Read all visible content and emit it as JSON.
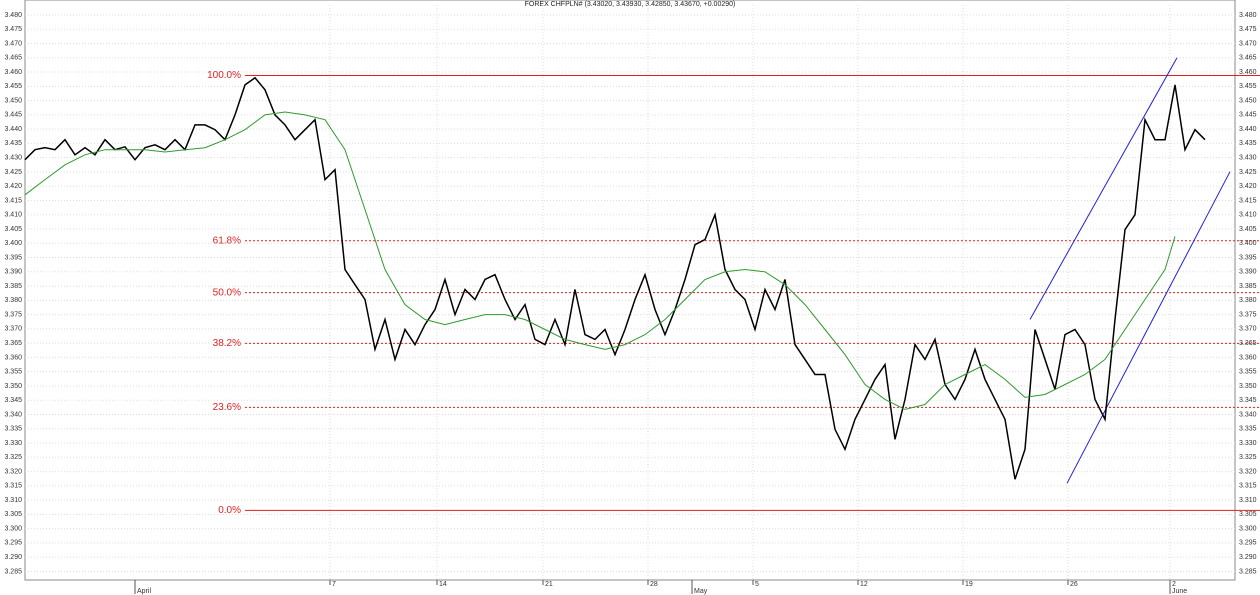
{
  "chart_data": {
    "type": "line",
    "title": "FOREX CHFPLN# (3.43020, 3.43930, 3.42850, 3.43670, +0.00290)",
    "xlim": [
      0,
      121
    ],
    "ylim": [
      3.282,
      3.4835
    ],
    "grid": true,
    "yticks": [
      3.285,
      {
        "value": 3.29,
        "label": "3.290"
      },
      3.295,
      {
        "value": 3.3,
        "label": "3.300"
      },
      3.305,
      {
        "value": 3.31,
        "label": "3.310"
      },
      3.315,
      {
        "value": 3.32,
        "label": "3.320"
      },
      3.325,
      {
        "value": 3.33,
        "label": "3.330"
      },
      3.335,
      {
        "value": 3.34,
        "label": "3.340"
      },
      3.345,
      {
        "value": 3.35,
        "label": "3.350"
      },
      3.355,
      {
        "value": 3.36,
        "label": "3.360"
      },
      3.365,
      {
        "value": 3.37,
        "label": "3.370"
      },
      3.375,
      {
        "value": 3.38,
        "label": "3.380"
      },
      3.385,
      {
        "value": 3.39,
        "label": "3.390"
      },
      3.395,
      {
        "value": 3.4,
        "label": "3.400"
      },
      3.405,
      {
        "value": 3.41,
        "label": "3.410"
      },
      3.415,
      {
        "value": 3.42,
        "label": "3.420"
      },
      3.425,
      {
        "value": 3.43,
        "label": "3.430"
      },
      3.435,
      {
        "value": 3.44,
        "label": "3.440"
      },
      3.445,
      {
        "value": 3.45,
        "label": "3.450"
      },
      3.455,
      {
        "value": 3.46,
        "label": "3.460"
      },
      3.465,
      {
        "value": 3.47,
        "label": "3.470"
      },
      3.475,
      {
        "value": 3.48,
        "label": "3.480"
      }
    ],
    "xticks": [
      {
        "value": 30.5,
        "label": "7"
      },
      {
        "value": 41.2,
        "label": "14"
      },
      {
        "value": 51.8,
        "label": "21"
      },
      {
        "value": 62.3,
        "label": "28"
      },
      {
        "value": 72.8,
        "label": "5"
      },
      {
        "value": 83.3,
        "label": "12"
      },
      {
        "value": 93.8,
        "label": "19"
      },
      {
        "value": 104.3,
        "label": "26"
      },
      {
        "value": 114.5,
        "label": "2"
      }
    ],
    "xmonths": [
      {
        "value": 11,
        "label": "April"
      },
      {
        "value": 66.7,
        "label": "May"
      },
      {
        "value": 114.5,
        "label": "June"
      }
    ],
    "series": [
      {
        "color": "#000000",
        "x": [
          0,
          1,
          2,
          3,
          4,
          5,
          6,
          7,
          8,
          9,
          10,
          11,
          12,
          13,
          14,
          15,
          16,
          17,
          18,
          19,
          20,
          21,
          22,
          23,
          24,
          25,
          26,
          27,
          28,
          29,
          30,
          31,
          32,
          33,
          34,
          35,
          36,
          37,
          38,
          39,
          40,
          41,
          42,
          43,
          44,
          45,
          46,
          47,
          48,
          49,
          50,
          51,
          52,
          53,
          54,
          55,
          56,
          57,
          58,
          59,
          60,
          61,
          62,
          63,
          64,
          65,
          66,
          67,
          68,
          69,
          70,
          71,
          72,
          73,
          74,
          75,
          76,
          77,
          78,
          79,
          80,
          81,
          82,
          83,
          84,
          85,
          86,
          87,
          88,
          89,
          90,
          91,
          92,
          93,
          94,
          95,
          96,
          97,
          98,
          99,
          100,
          101,
          102,
          103,
          104,
          105,
          106,
          107,
          108,
          109,
          110,
          111,
          112,
          113,
          114,
          115,
          116,
          117,
          118
        ],
        "values": [
          3.4293,
          3.4328,
          3.4335,
          3.4328,
          3.4363,
          3.431,
          3.4335,
          3.431,
          3.4363,
          3.4328,
          3.4338,
          3.4293,
          3.4335,
          3.4345,
          3.4328,
          3.4363,
          3.4328,
          3.4415,
          3.4415,
          3.4398,
          3.4363,
          3.445,
          3.4555,
          3.458,
          3.4538,
          3.445,
          3.4415,
          3.4363,
          3.4398,
          3.4433,
          3.4223,
          3.4258,
          3.3908,
          3.3855,
          3.3803,
          3.3628,
          3.3733,
          3.3593,
          3.3698,
          3.3645,
          3.3715,
          3.3768,
          3.3873,
          3.375,
          3.3838,
          3.3803,
          3.3873,
          3.389,
          3.3803,
          3.3733,
          3.3785,
          3.3663,
          3.3645,
          3.3733,
          3.3645,
          3.3838,
          3.368,
          3.3663,
          3.3698,
          3.361,
          3.3698,
          3.3803,
          3.389,
          3.3768,
          3.368,
          3.3768,
          3.3873,
          3.3995,
          3.4013,
          3.41,
          3.3908,
          3.3838,
          3.3803,
          3.3698,
          3.3838,
          3.3768,
          3.3873,
          3.3645,
          3.3593,
          3.354,
          3.354,
          3.3348,
          3.3278,
          3.3383,
          3.3453,
          3.3523,
          3.3575,
          3.3313,
          3.3453,
          3.3645,
          3.3593,
          3.3663,
          3.3505,
          3.3453,
          3.3523,
          3.3628,
          3.3523,
          3.3453,
          3.3383,
          3.3173,
          3.3278,
          3.3698,
          3.3593,
          3.3488,
          3.368,
          3.3698,
          3.3645,
          3.3453,
          3.3383,
          3.3733,
          3.4048,
          3.41,
          3.4433,
          3.4363,
          3.4363,
          3.4555,
          3.4328,
          3.4398,
          3.4363
        ]
      },
      {
        "color": "#2e9a2e",
        "x": [
          0,
          2,
          4,
          6,
          8,
          10,
          12,
          14,
          16,
          18,
          20,
          22,
          24,
          26,
          28,
          30,
          32,
          34,
          36,
          38,
          40,
          42,
          44,
          46,
          48,
          50,
          52,
          54,
          56,
          58,
          60,
          62,
          64,
          66,
          68,
          70,
          72,
          74,
          76,
          78,
          80,
          82,
          84,
          86,
          88,
          90,
          92,
          94,
          96,
          98,
          100,
          102,
          104,
          106,
          108,
          110,
          112,
          114,
          115
        ],
        "values": [
          3.417,
          3.4223,
          3.4275,
          3.431,
          3.4328,
          3.4328,
          3.4328,
          3.432,
          3.4328,
          3.4335,
          3.4363,
          3.4398,
          3.445,
          3.446,
          3.445,
          3.4433,
          3.4328,
          3.4118,
          3.3908,
          3.3785,
          3.3733,
          3.3715,
          3.3733,
          3.375,
          3.375,
          3.3733,
          3.3698,
          3.3663,
          3.3645,
          3.3628,
          3.3645,
          3.368,
          3.3733,
          3.3803,
          3.3873,
          3.39,
          3.3908,
          3.39,
          3.3855,
          3.3785,
          3.3698,
          3.361,
          3.3505,
          3.3453,
          3.3418,
          3.3435,
          3.3505,
          3.354,
          3.3575,
          3.3523,
          3.346,
          3.347,
          3.3505,
          3.354,
          3.3593,
          3.3698,
          3.3803,
          3.3908,
          3.4024
        ]
      }
    ],
    "levels_color": "#e02020",
    "levels": [
      {
        "label": "100.0%",
        "value": 3.4588,
        "style": "solid"
      },
      {
        "label": "61.8%",
        "value": 3.4009,
        "style": "dotted"
      },
      {
        "label": "50.0%",
        "value": 3.3827,
        "style": "dotted"
      },
      {
        "label": "38.2%",
        "value": 3.3649,
        "style": "dotted"
      },
      {
        "label": "23.6%",
        "value": 3.3425,
        "style": "dotted"
      },
      {
        "label": "0.0%",
        "value": 3.3064,
        "style": "solid"
      }
    ],
    "channel_color": "#2020e0",
    "channel": [
      {
        "x": [
          100.5,
          115.2
        ],
        "values": [
          3.3733,
          3.465
        ]
      },
      {
        "x": [
          104.2,
          120.5
        ],
        "values": [
          3.3159,
          3.4251
        ]
      }
    ]
  }
}
